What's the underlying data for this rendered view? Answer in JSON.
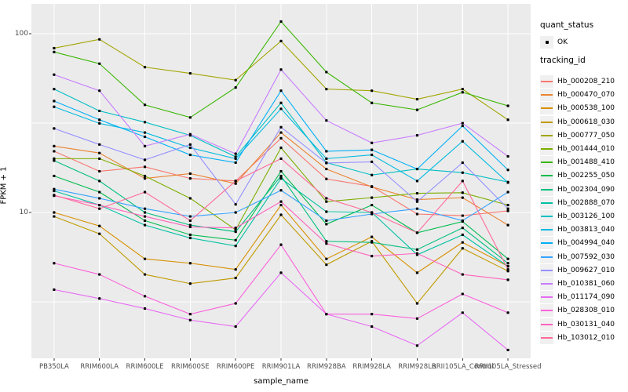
{
  "figure": {
    "background": "#FFFFFF",
    "panel_background": "#EBEBEB",
    "grid_color": "#FFFFFF",
    "axis_text_color": "#4D4D4D",
    "tick_color": "#333333",
    "point_color": "#000000",
    "legend_key_background": "#F0F0F0"
  },
  "axes": {
    "y_title": "FPKM + 1",
    "x_title": "sample_name",
    "y_ticks": [
      {
        "label": "100",
        "value": 100
      },
      {
        "label": "10",
        "value": 10
      }
    ],
    "y_minor_gridlines": [
      31.62,
      3.162
    ]
  },
  "legend": {
    "quant_title": "quant_status",
    "quant_items": [
      {
        "label": "OK"
      }
    ],
    "tracking_title": "tracking_id"
  },
  "chart_data": {
    "type": "line",
    "title": "",
    "xlabel": "sample_name",
    "ylabel": "FPKM + 1",
    "y_scale": "log10",
    "ylim": [
      1.5,
      140
    ],
    "grid": true,
    "legend_position": "right",
    "point_shape": "filled-black-dot",
    "categories": [
      "PB350LA",
      "RRIM600LA",
      "RRIM600LE",
      "RRIM600SE",
      "RRIM600PE",
      "RRIM901LA",
      "RRIM928BA",
      "RRIM928LA",
      "RRIM928LB",
      "RRII105LA_Control",
      "RRII105LA_Stressed"
    ],
    "series": [
      {
        "name": "Hb_000208_210",
        "color": "#F8766D",
        "quant_status": "OK",
        "values": [
          22,
          17,
          18,
          15.5,
          15,
          26,
          15.4,
          14,
          9.8,
          9.6,
          10.2
        ]
      },
      {
        "name": "Hb_000470_070",
        "color": "#EA8331",
        "quant_status": "OK",
        "values": [
          23.5,
          21.5,
          15.5,
          16.5,
          14.5,
          28,
          17.5,
          13.9,
          11.8,
          12.1,
          8.5
        ]
      },
      {
        "name": "Hb_000538_100",
        "color": "#D89000",
        "quant_status": "OK",
        "values": [
          10,
          8.4,
          5.5,
          5.2,
          4.8,
          11,
          5.5,
          7.3,
          4.6,
          6.8,
          5.0
        ]
      },
      {
        "name": "Hb_000618_030",
        "color": "#C09B00",
        "quant_status": "OK",
        "values": [
          9.5,
          7.6,
          4.5,
          4.0,
          4.3,
          9.7,
          5.1,
          6.9,
          3.1,
          6.3,
          4.7
        ]
      },
      {
        "name": "Hb_000777_050",
        "color": "#A3A500",
        "quant_status": "OK",
        "values": [
          83,
          93,
          65,
          60,
          55,
          91,
          49,
          48,
          43,
          49,
          33
        ]
      },
      {
        "name": "Hb_001444_010",
        "color": "#7CAE00",
        "quant_status": "OK",
        "values": [
          20,
          20,
          16,
          12,
          8,
          23,
          11.5,
          12.1,
          12.8,
          12.9,
          11
        ]
      },
      {
        "name": "Hb_001488_410",
        "color": "#39B600",
        "quant_status": "OK",
        "values": [
          79,
          68,
          40,
          34,
          50,
          117,
          61,
          41,
          37.5,
          47,
          39.5
        ]
      },
      {
        "name": "Hb_002255_050",
        "color": "#00BB4E",
        "quant_status": "OK",
        "values": [
          16,
          13,
          9,
          7.5,
          7,
          17,
          8.6,
          11,
          7.7,
          8.9,
          5.5
        ]
      },
      {
        "name": "Hb_002304_090",
        "color": "#00BF7D",
        "quant_status": "OK",
        "values": [
          19.5,
          15,
          10,
          8.5,
          7.8,
          16,
          6.9,
          6.8,
          6.2,
          8.2,
          5.2
        ]
      },
      {
        "name": "Hb_002888_070",
        "color": "#00C1A3",
        "quant_status": "OK",
        "values": [
          13.2,
          11,
          8.5,
          7.2,
          6.5,
          15.5,
          10.1,
          10,
          5.8,
          7.5,
          5.0
        ]
      },
      {
        "name": "Hb_003126_100",
        "color": "#00BFC4",
        "quant_status": "OK",
        "values": [
          49,
          37,
          32,
          27,
          20.5,
          41,
          19,
          16.2,
          17.5,
          16.7,
          14.8
        ]
      },
      {
        "name": "Hb_003813_040",
        "color": "#00BAE0",
        "quant_status": "OK",
        "values": [
          39,
          31.5,
          28,
          23,
          20,
          38,
          20,
          21,
          15,
          25,
          14.7
        ]
      },
      {
        "name": "Hb_004994_040",
        "color": "#00B0F6",
        "quant_status": "OK",
        "values": [
          42,
          33,
          26.5,
          21,
          19,
          48,
          22,
          22.4,
          17.5,
          30.5,
          17.3
        ]
      },
      {
        "name": "Hb_007592_030",
        "color": "#35A2FF",
        "quant_status": "OK",
        "values": [
          13.5,
          12,
          10.5,
          9.5,
          10,
          13.3,
          9,
          9.8,
          10.5,
          9,
          13
        ]
      },
      {
        "name": "Hb_009627_010",
        "color": "#9590FF",
        "quant_status": "OK",
        "values": [
          29.5,
          24,
          19.7,
          24,
          11.1,
          30,
          18.9,
          19.2,
          11.5,
          19,
          10.5
        ]
      },
      {
        "name": "Hb_010381_060",
        "color": "#C77CFF",
        "quant_status": "OK",
        "values": [
          59,
          48,
          23.5,
          27.4,
          21.3,
          63,
          32.7,
          24.5,
          27,
          31.6,
          20.6
        ]
      },
      {
        "name": "Hb_011174_090",
        "color": "#E76BF3",
        "quant_status": "OK",
        "values": [
          3.7,
          3.3,
          2.9,
          2.5,
          2.3,
          4.6,
          2.7,
          2.3,
          1.8,
          2.75,
          1.7
        ]
      },
      {
        "name": "Hb_028308_010",
        "color": "#FA62DB",
        "quant_status": "OK",
        "values": [
          5.2,
          4.5,
          3.4,
          2.7,
          3.1,
          6.6,
          2.7,
          2.7,
          2.55,
          3.5,
          2.75
        ]
      },
      {
        "name": "Hb_030131_040",
        "color": "#FF62BC",
        "quant_status": "OK",
        "values": [
          12.4,
          11,
          9.5,
          8.3,
          8.2,
          11.5,
          6.7,
          5.7,
          5.9,
          4.5,
          4.2
        ]
      },
      {
        "name": "Hb_103012_010",
        "color": "#FF6A98",
        "quant_status": "OK",
        "values": [
          12.5,
          10.5,
          13,
          9,
          15,
          20,
          12,
          10,
          7.7,
          15,
          4.8
        ]
      }
    ]
  }
}
